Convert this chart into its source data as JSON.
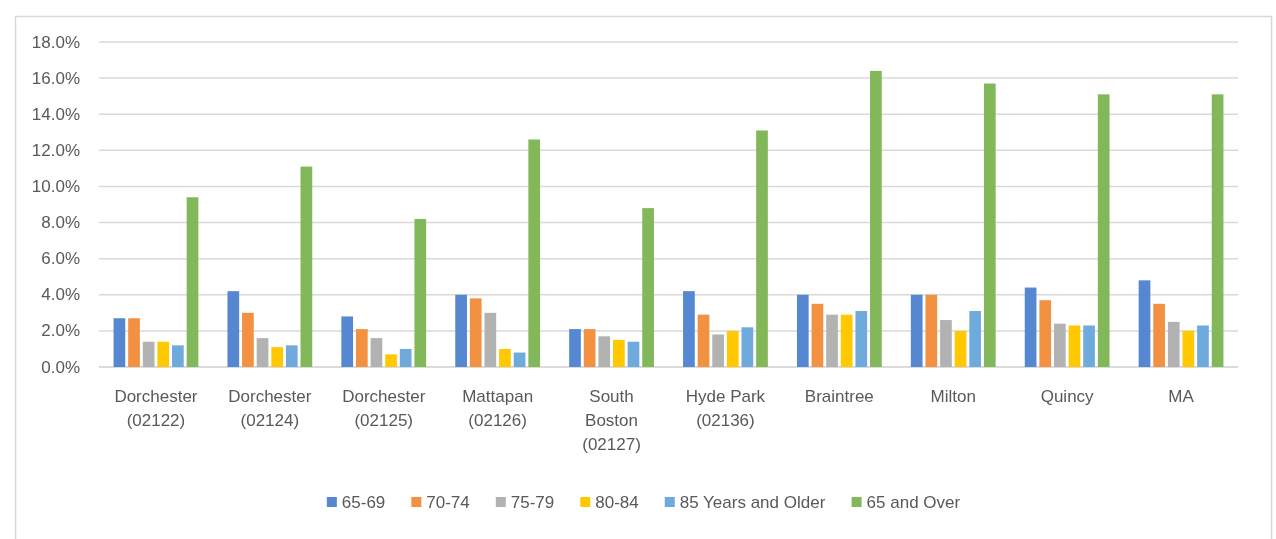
{
  "chart_data": {
    "type": "bar",
    "categories": [
      "Dorchester (02122)",
      "Dorchester (02124)",
      "Dorchester (02125)",
      "Mattapan (02126)",
      "South Boston (02127)",
      "Hyde Park (02136)",
      "Braintree",
      "Milton",
      "Quincy",
      "MA"
    ],
    "series": [
      {
        "name": "65-69",
        "color": "#5687d1",
        "values": [
          2.7,
          4.2,
          2.8,
          4.0,
          2.1,
          4.2,
          4.0,
          4.0,
          4.4,
          4.8
        ]
      },
      {
        "name": "70-74",
        "color": "#f29141",
        "values": [
          2.7,
          3.0,
          2.1,
          3.8,
          2.1,
          2.9,
          3.5,
          4.0,
          3.7,
          3.5
        ]
      },
      {
        "name": "75-79",
        "color": "#b2b2b2",
        "values": [
          1.4,
          1.6,
          1.6,
          3.0,
          1.7,
          1.8,
          2.9,
          2.6,
          2.4,
          2.5
        ]
      },
      {
        "name": "80-84",
        "color": "#ffc800",
        "values": [
          1.4,
          1.1,
          0.7,
          1.0,
          1.5,
          2.0,
          2.9,
          2.0,
          2.3,
          2.0
        ]
      },
      {
        "name": "85 Years and Older",
        "color": "#6eabdc",
        "values": [
          1.2,
          1.2,
          1.0,
          0.8,
          1.4,
          2.2,
          3.1,
          3.1,
          2.3,
          2.3
        ]
      },
      {
        "name": "65 and Over",
        "color": "#82b75a",
        "values": [
          9.4,
          11.1,
          8.2,
          12.6,
          8.8,
          13.1,
          16.4,
          15.7,
          15.1,
          15.1
        ]
      }
    ],
    "ylim": [
      0,
      18
    ],
    "yticks": [
      {
        "value": 0,
        "label": "0.0%"
      },
      {
        "value": 2,
        "label": "2.0%"
      },
      {
        "value": 4,
        "label": "4.0%"
      },
      {
        "value": 6,
        "label": "6.0%"
      },
      {
        "value": 8,
        "label": "8.0%"
      },
      {
        "value": 10,
        "label": "10.0%"
      },
      {
        "value": 12,
        "label": "12.0%"
      },
      {
        "value": 14,
        "label": "14.0%"
      },
      {
        "value": 16,
        "label": "16.0%"
      },
      {
        "value": 18,
        "label": "18.0%"
      }
    ],
    "grid": "y",
    "legend": "bottom"
  }
}
